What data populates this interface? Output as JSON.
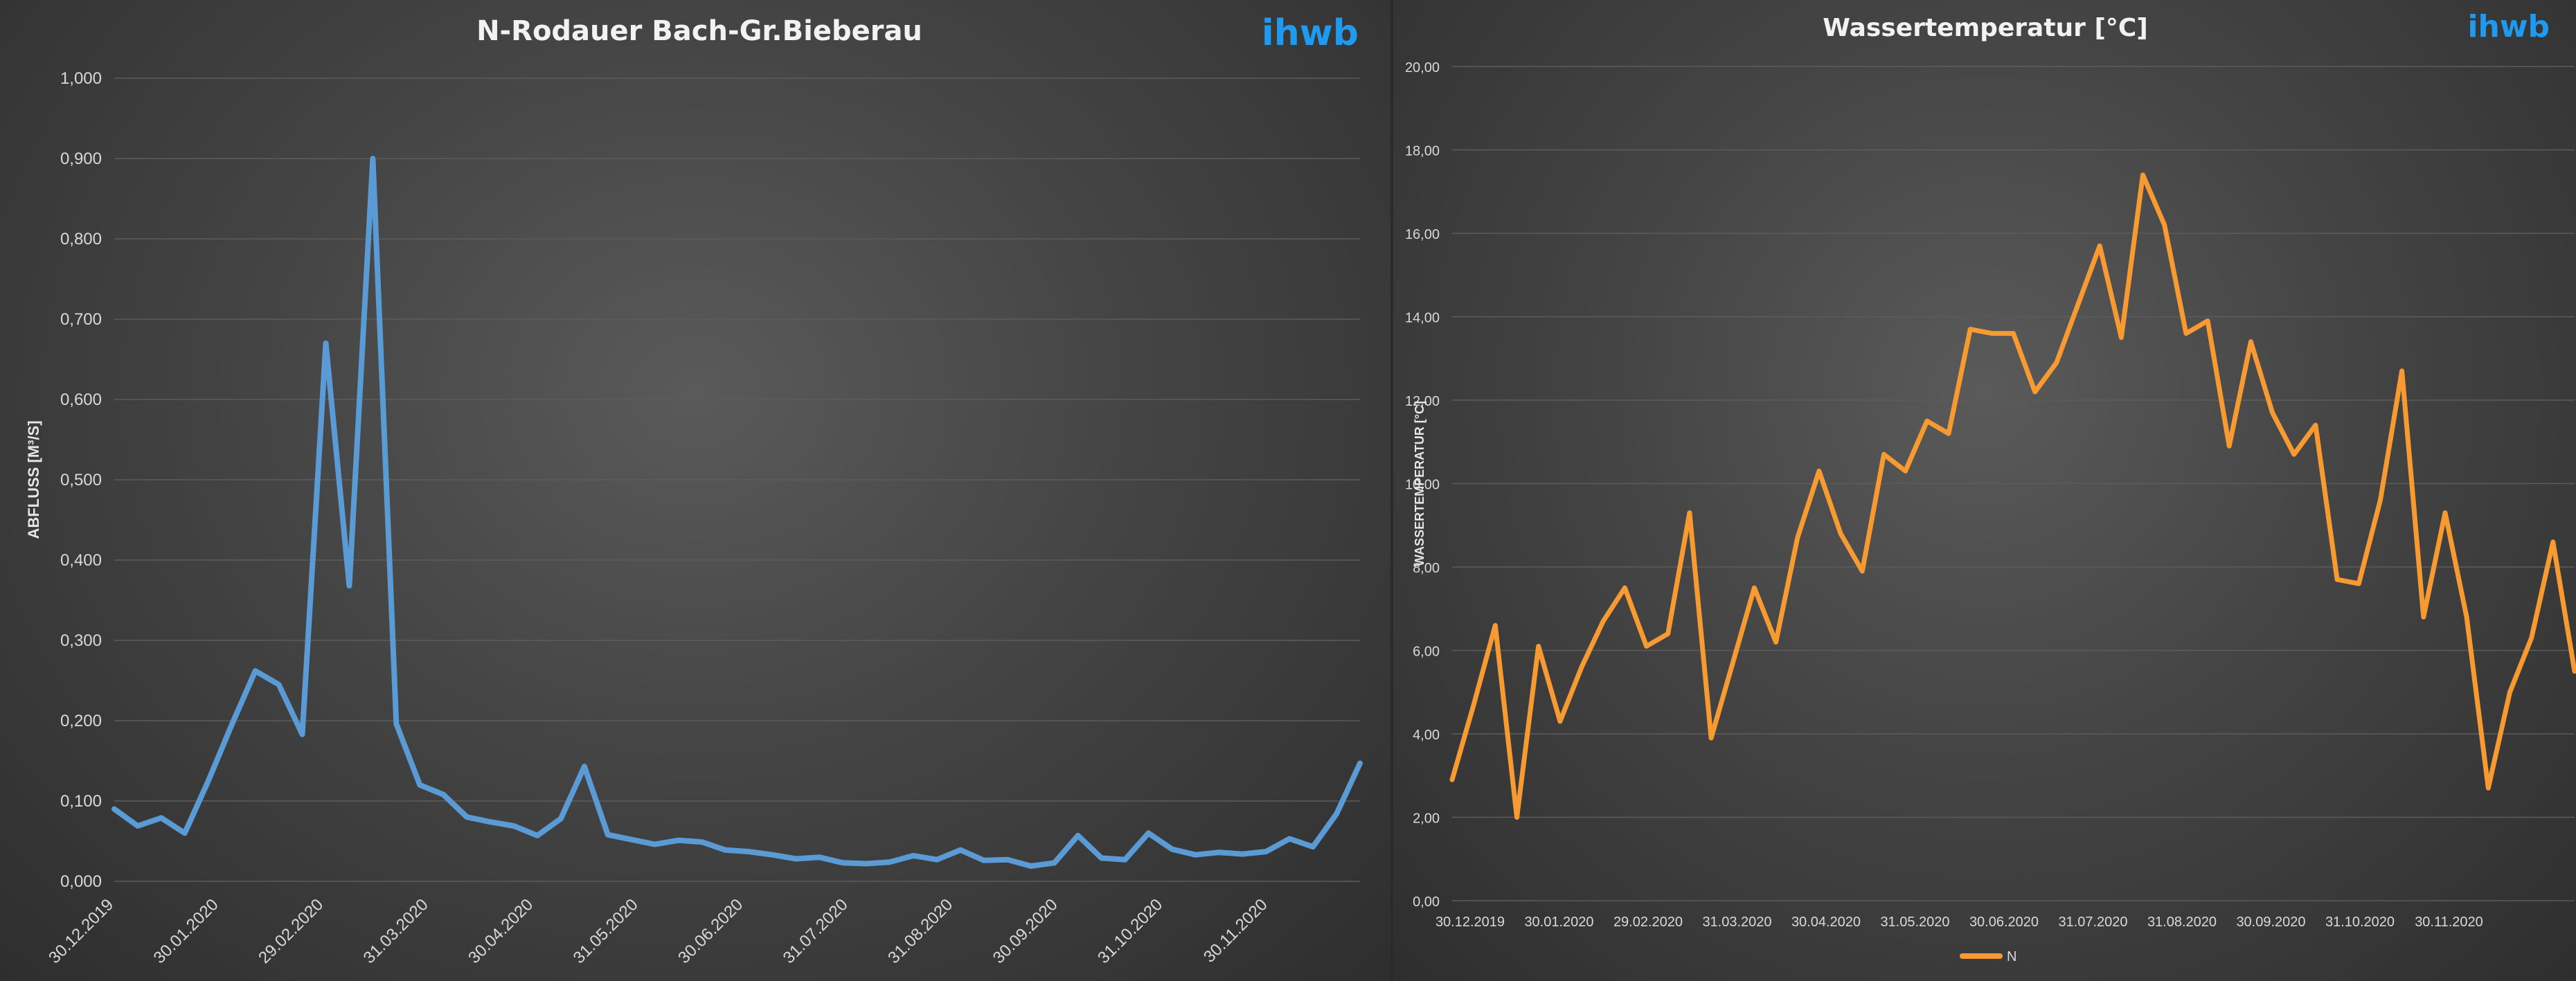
{
  "chart_data": [
    {
      "type": "line",
      "title": "N-Rodauer Bach-Gr.Bieberau",
      "logo": "ihwb",
      "xlabel": "",
      "ylabel": "ABFLUSS [M³/S]",
      "ylim": [
        0,
        1.0
      ],
      "y_ticks": [
        "0,000",
        "0,100",
        "0,200",
        "0,300",
        "0,400",
        "0,500",
        "0,600",
        "0,700",
        "0,800",
        "0,900",
        "1,000"
      ],
      "x_ticks": [
        "30.12.2019",
        "30.01.2020",
        "29.02.2020",
        "31.03.2020",
        "30.04.2020",
        "31.05.2020",
        "30.06.2020",
        "31.07.2020",
        "31.08.2020",
        "30.09.2020",
        "31.10.2020",
        "30.11.2020"
      ],
      "series_color": "#5b9bd5",
      "series": [
        {
          "name": "Abfluss",
          "values": [
            0.09,
            0.069,
            0.079,
            0.06,
            0.125,
            0.195,
            0.262,
            0.245,
            0.183,
            0.67,
            0.368,
            0.9,
            0.196,
            0.12,
            0.108,
            0.08,
            0.074,
            0.069,
            0.057,
            0.078,
            0.143,
            0.058,
            0.052,
            0.046,
            0.051,
            0.049,
            0.039,
            0.037,
            0.033,
            0.028,
            0.03,
            0.023,
            0.022,
            0.024,
            0.032,
            0.027,
            0.039,
            0.026,
            0.027,
            0.019,
            0.023,
            0.057,
            0.029,
            0.027,
            0.06,
            0.04,
            0.033,
            0.036,
            0.034,
            0.037,
            0.053,
            0.043,
            0.084,
            0.147
          ]
        }
      ]
    },
    {
      "type": "line",
      "title": "Wassertemperatur [°C]",
      "logo": "ihwb",
      "xlabel": "",
      "ylabel": "WASSERTEMPERATUR [°C]",
      "ylim": [
        0,
        20
      ],
      "y_ticks": [
        "0,00",
        "2,00",
        "4,00",
        "6,00",
        "8,00",
        "10,00",
        "12,00",
        "14,00",
        "16,00",
        "18,00",
        "20,00"
      ],
      "x_ticks": [
        "30.12.2019",
        "30.01.2020",
        "29.02.2020",
        "31.03.2020",
        "30.04.2020",
        "31.05.2020",
        "30.06.2020",
        "31.07.2020",
        "31.08.2020",
        "30.09.2020",
        "31.10.2020",
        "30.11.2020"
      ],
      "legend": "N",
      "series_color": "#f79a31",
      "series": [
        {
          "name": "N",
          "values": [
            2.9,
            4.7,
            6.6,
            2.0,
            6.1,
            4.3,
            5.6,
            6.7,
            7.5,
            6.1,
            6.4,
            9.3,
            3.9,
            5.7,
            7.5,
            6.2,
            8.7,
            10.3,
            8.8,
            7.9,
            10.7,
            10.3,
            11.5,
            11.2,
            13.7,
            13.6,
            13.6,
            12.2,
            12.9,
            14.3,
            15.7,
            13.5,
            17.4,
            16.2,
            13.6,
            13.9,
            10.9,
            13.4,
            11.7,
            10.7,
            11.4,
            7.7,
            7.6,
            9.6,
            12.7,
            6.8,
            9.3,
            6.8,
            2.7,
            5.0,
            6.3,
            8.6,
            5.5
          ]
        }
      ]
    }
  ]
}
